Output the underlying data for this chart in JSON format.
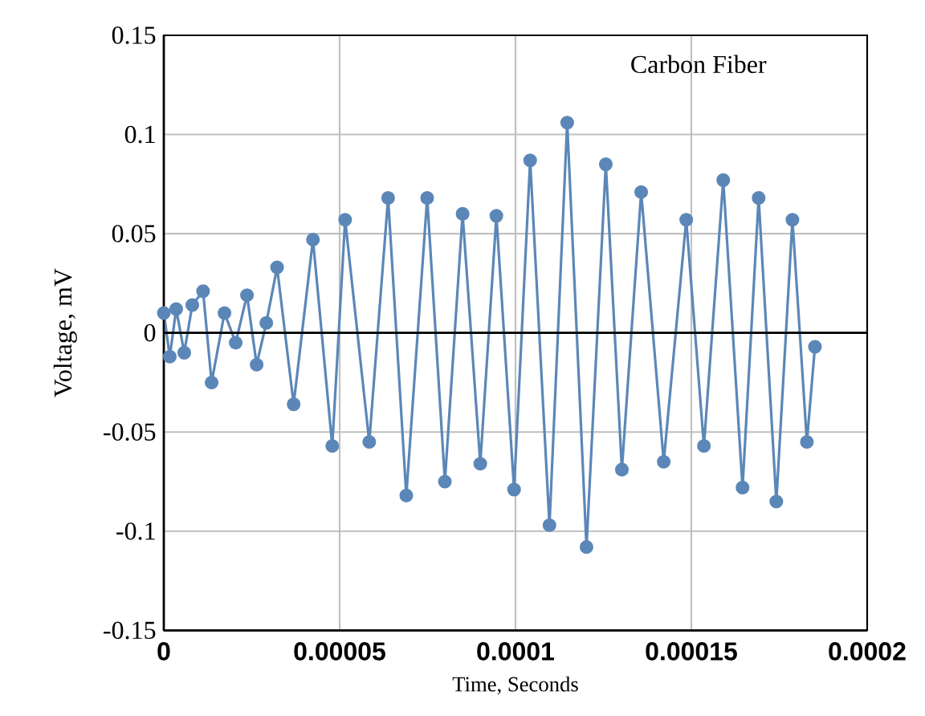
{
  "chart_data": {
    "type": "line",
    "title": "Carbon Fiber",
    "xlabel": "Time, Seconds",
    "ylabel": "Voltage, mV",
    "x": [
      0,
      1.7e-06,
      3.52e-06,
      5.81e-06,
      8.1e-06,
      1.116e-05,
      1.359e-05,
      1.725e-05,
      2.045e-05,
      2.365e-05,
      2.64e-05,
      2.914e-05,
      3.221e-05,
      3.692e-05,
      4.241e-05,
      4.79e-05,
      5.156e-05,
      5.842e-05,
      6.378e-05,
      6.895e-05,
      7.489e-05,
      7.993e-05,
      8.496e-05,
      8.999e-05,
      9.457e-05,
      9.96e-05,
      0.00010417,
      0.00010966,
      0.0001147,
      0.00012019,
      0.00012568,
      0.00013025,
      0.00013574,
      0.00014215,
      0.00014855,
      0.00015358,
      0.00015907,
      0.00016456,
      0.00016914,
      0.00017417,
      0.00017875,
      0.00018286,
      0.00018515
    ],
    "series": [
      {
        "color": "#5b87b8",
        "values": [
          0.01,
          -0.012,
          0.012,
          -0.01,
          0.014,
          0.021,
          -0.025,
          0.01,
          -0.005,
          0.019,
          -0.016,
          0.005,
          0.033,
          -0.036,
          0.047,
          -0.057,
          0.057,
          -0.055,
          0.068,
          -0.082,
          0.068,
          -0.075,
          0.06,
          -0.066,
          0.059,
          -0.079,
          0.087,
          -0.097,
          0.106,
          -0.108,
          0.085,
          -0.069,
          0.071,
          -0.065,
          0.057,
          -0.057,
          0.077,
          -0.078,
          0.068,
          -0.085,
          0.057,
          -0.055,
          -0.007
        ]
      }
    ],
    "xlim": [
      0,
      0.0002
    ],
    "ylim": [
      -0.15,
      0.15
    ],
    "xticks": [
      {
        "value": 0,
        "label": "0"
      },
      {
        "value": 5e-05,
        "label": "0.00005"
      },
      {
        "value": 0.0001,
        "label": "0.0001"
      },
      {
        "value": 0.00015,
        "label": "0.00015"
      },
      {
        "value": 0.0002,
        "label": "0.0002"
      }
    ],
    "yticks": [
      -0.15,
      -0.1,
      -0.05,
      0,
      0.05,
      0.1,
      0.15
    ],
    "grid": true,
    "marker": "circle",
    "line_style": "solid"
  }
}
